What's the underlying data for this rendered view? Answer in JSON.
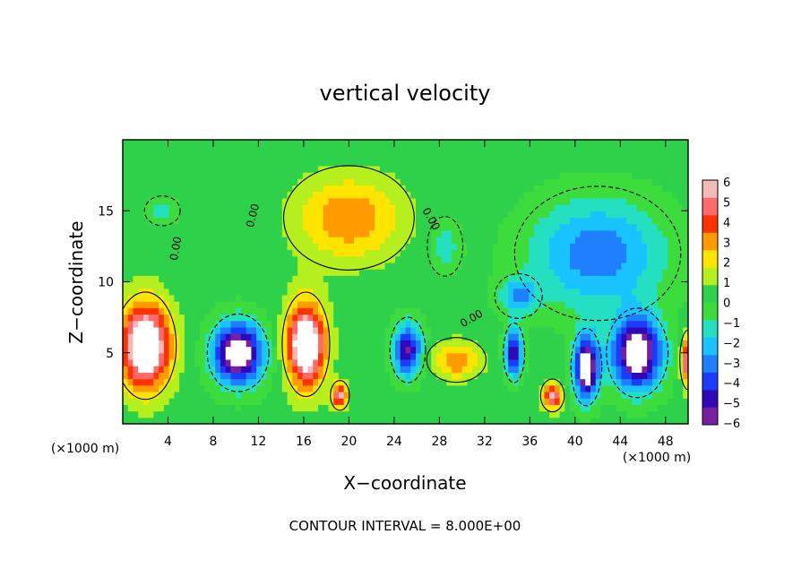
{
  "chart_data": {
    "type": "heatmap",
    "title": "vertical velocity",
    "xlabel": "X−coordinate",
    "ylabel": "Z−coordinate",
    "x_unit_left": "(×1000 m)",
    "x_unit_right": "(×1000 m)",
    "footer": "CONTOUR INTERVAL = 8.000E+00",
    "xlim": [
      0,
      50
    ],
    "ylim": [
      0,
      20
    ],
    "x_ticks": [
      4,
      8,
      12,
      16,
      20,
      24,
      28,
      32,
      36,
      40,
      44,
      48
    ],
    "y_ticks": [
      5,
      10,
      15
    ],
    "x_tick_labels": [
      "4",
      "8",
      "12",
      "16",
      "20",
      "24",
      "28",
      "32",
      "36",
      "40",
      "44",
      "48"
    ],
    "y_tick_labels": [
      "5",
      "10",
      "15"
    ],
    "colorbar": {
      "range": [
        -6,
        6
      ],
      "tick_labels": [
        "6",
        "5",
        "4",
        "3",
        "2",
        "1",
        "0",
        "−1",
        "−2",
        "−3",
        "−4",
        "−5",
        "−6"
      ],
      "colors": [
        "#7a1fa2",
        "#2f08b8",
        "#1a3cff",
        "#1e7fff",
        "#19c3ff",
        "#25e0c0",
        "#3ddc3d",
        "#2ed24a",
        "#b6ef1e",
        "#ffe400",
        "#ff9a00",
        "#ff3300",
        "#ff6a6a",
        "#f5b9b9"
      ]
    },
    "contour_labels": [
      "0.00",
      "0.00",
      "0.00",
      "0.00"
    ],
    "features": [
      {
        "kind": "updraft",
        "x": 2.0,
        "z": 5.5,
        "rx": 2.6,
        "rz": 3.6,
        "w": 8.0
      },
      {
        "kind": "updraft",
        "x": 16.2,
        "z": 5.6,
        "rx": 2.0,
        "rz": 3.5,
        "w": 8.0
      },
      {
        "kind": "updraft",
        "x": 19.2,
        "z": 2.0,
        "rx": 0.8,
        "rz": 1.0,
        "w": 5.5
      },
      {
        "kind": "updraft",
        "x": 38.0,
        "z": 2.0,
        "rx": 1.0,
        "rz": 1.1,
        "w": 5.5
      },
      {
        "kind": "updraft",
        "x": 20.0,
        "z": 14.5,
        "rx": 5.5,
        "rz": 3.5,
        "w": 3.2
      },
      {
        "kind": "updraft",
        "x": 29.5,
        "z": 4.5,
        "rx": 2.5,
        "rz": 1.5,
        "w": 3.2
      },
      {
        "kind": "updraft",
        "x": 50.0,
        "z": 4.5,
        "rx": 0.7,
        "rz": 2.0,
        "w": 6.0
      },
      {
        "kind": "downdraft",
        "x": 10.2,
        "z": 5.0,
        "rx": 2.6,
        "rz": 2.6,
        "w": -8.0
      },
      {
        "kind": "downdraft",
        "x": 25.2,
        "z": 5.2,
        "rx": 1.5,
        "rz": 2.2,
        "w": -6.0
      },
      {
        "kind": "downdraft",
        "x": 34.6,
        "z": 5.0,
        "rx": 0.9,
        "rz": 2.0,
        "w": -6.0
      },
      {
        "kind": "downdraft",
        "x": 41.0,
        "z": 4.0,
        "rx": 1.3,
        "rz": 2.6,
        "w": -8.0
      },
      {
        "kind": "downdraft",
        "x": 45.5,
        "z": 5.0,
        "rx": 2.6,
        "rz": 3.0,
        "w": -8.0
      },
      {
        "kind": "downdraft",
        "x": 42.0,
        "z": 12.0,
        "rx": 7.0,
        "rz": 4.5,
        "w": -3.8
      },
      {
        "kind": "downdraft",
        "x": 28.5,
        "z": 12.5,
        "rx": 1.5,
        "rz": 2.0,
        "w": -2.0
      },
      {
        "kind": "downdraft",
        "x": 3.5,
        "z": 15.0,
        "rx": 1.5,
        "rz": 1.0,
        "w": -2.0
      },
      {
        "kind": "downdraft",
        "x": 35.0,
        "z": 9.0,
        "rx": 2.0,
        "rz": 1.5,
        "w": -3.0
      }
    ]
  }
}
